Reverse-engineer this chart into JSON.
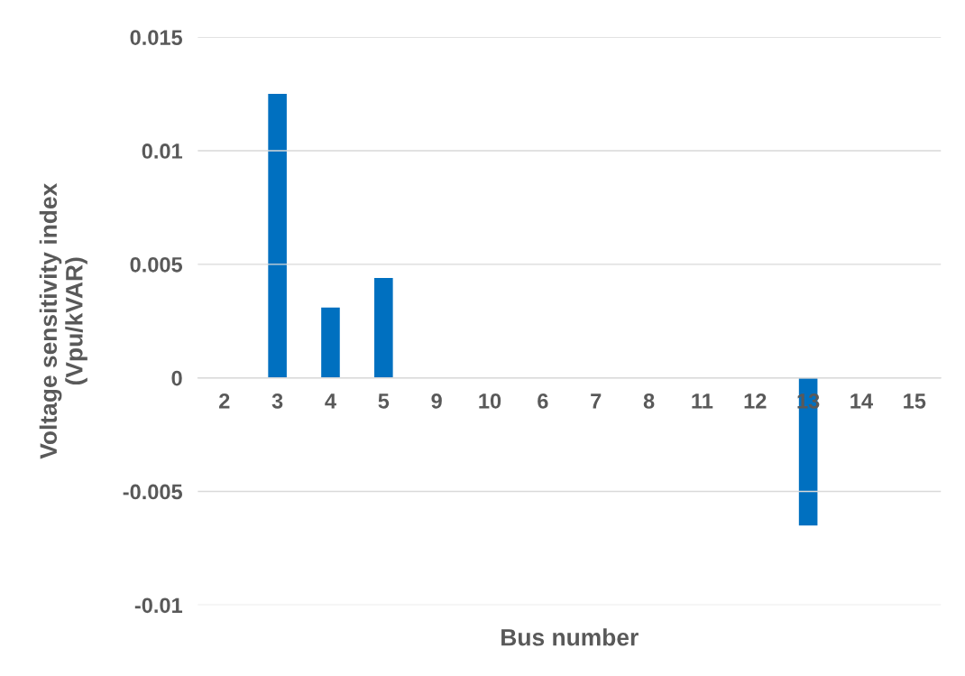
{
  "chart_data": {
    "type": "bar",
    "xlabel": "Bus number",
    "ylabel": "Voltage sensitivity index\n(Vpu/kVAR)",
    "categories": [
      "2",
      "3",
      "4",
      "5",
      "9",
      "10",
      "6",
      "7",
      "8",
      "11",
      "12",
      "13",
      "14",
      "15"
    ],
    "values": [
      0,
      0.0125,
      0.0031,
      0.0044,
      0,
      0,
      0,
      0,
      0,
      0,
      0,
      -0.0065,
      0,
      0
    ],
    "color": "#0070c0",
    "ylim": [
      -0.01,
      0.015
    ],
    "yticks": [
      -0.01,
      -0.005,
      0,
      0.005,
      0.01,
      0.015
    ],
    "grid": "y"
  }
}
